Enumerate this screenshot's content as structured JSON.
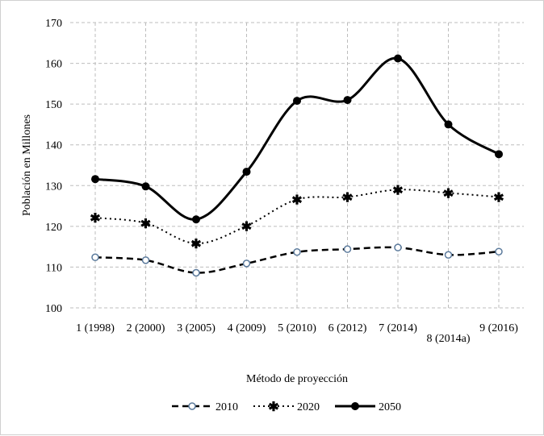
{
  "chart_data": {
    "type": "line",
    "title": "",
    "xlabel": "Método de proyección",
    "ylabel": "Población en Millones",
    "ylim": [
      100,
      170
    ],
    "yticks": [
      100,
      110,
      120,
      130,
      140,
      150,
      160,
      170
    ],
    "grid": true,
    "legend_position": "bottom",
    "categories": [
      "1 (1998)",
      "2 (2000)",
      "3 (2005)",
      "4 (2009)",
      "5 (2010)",
      "6 (2012)",
      "7 (2014)",
      "8 (2014a)",
      "9 (2016)"
    ],
    "series": [
      {
        "name": "2010",
        "style": "dashed",
        "marker": "open-circle",
        "color": "#000000",
        "marker_color": "#5b7a9c",
        "values": [
          112.4,
          111.7,
          108.6,
          110.9,
          113.7,
          114.4,
          114.8,
          113.0,
          113.8
        ]
      },
      {
        "name": "2020",
        "style": "dotted",
        "marker": "star",
        "color": "#000000",
        "values": [
          122.1,
          120.8,
          115.8,
          120.1,
          126.6,
          127.2,
          129.0,
          128.2,
          127.2
        ]
      },
      {
        "name": "2050",
        "style": "solid",
        "marker": "filled-circle",
        "color": "#000000",
        "values": [
          131.6,
          129.8,
          121.7,
          133.4,
          150.8,
          151.0,
          161.2,
          145.0,
          137.7
        ]
      }
    ]
  }
}
